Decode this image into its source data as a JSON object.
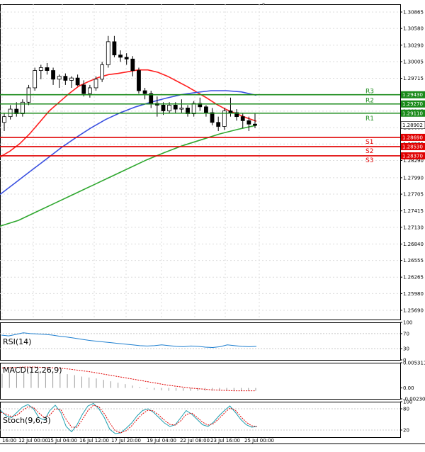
{
  "chart_data": [
    {
      "type": "candlestick",
      "panel": "price",
      "title": "",
      "ylim": [
        1.2553,
        1.31
      ],
      "y_ticks": [
        "1.30865",
        "1.30580",
        "1.30290",
        "1.30005",
        "1.29715",
        "1.29430",
        "1.29145",
        "1.28860",
        "1.28575",
        "1.28290",
        "1.27990",
        "1.27705",
        "1.27415",
        "1.27130",
        "1.26840",
        "1.26555",
        "1.26265",
        "1.25980",
        "1.25690"
      ],
      "x_ticks": [
        "16:00",
        "12 Jul 00:00",
        "15 Jul 04:00",
        "16 Jul 12:00",
        "17 Jul 20:00",
        "19 Jul 04:00",
        "22 Jul 08:00",
        "23 Jul 16:00",
        "25 Jul 00:00"
      ],
      "current_price": "1.28902",
      "levels": [
        {
          "name": "R3",
          "value": 1.2943,
          "label": "1.29430",
          "color": "#1a8a1a"
        },
        {
          "name": "R2",
          "value": 1.2927,
          "label": "1.29270",
          "color": "#1a8a1a"
        },
        {
          "name": "R1",
          "value": 1.2911,
          "label": "1.29110",
          "color": "#1a8a1a"
        },
        {
          "name": "S1",
          "value": 1.2869,
          "label": "1.28690",
          "color": "#e00000"
        },
        {
          "name": "S2",
          "value": 1.2853,
          "label": "1.28530",
          "color": "#e00000"
        },
        {
          "name": "S3",
          "value": 1.2837,
          "label": "1.28370",
          "color": "#e00000"
        }
      ],
      "candles": [
        [
          1.2895,
          1.2912,
          1.288,
          1.2905
        ],
        [
          1.2905,
          1.2925,
          1.29,
          1.2918
        ],
        [
          1.2918,
          1.293,
          1.2905,
          1.291
        ],
        [
          1.291,
          1.2935,
          1.2905,
          1.293
        ],
        [
          1.293,
          1.296,
          1.2925,
          1.2955
        ],
        [
          1.2955,
          1.299,
          1.295,
          1.2985
        ],
        [
          1.2985,
          1.2995,
          1.297,
          1.299
        ],
        [
          1.299,
          1.2998,
          1.2978,
          1.2985
        ],
        [
          1.2985,
          1.299,
          1.296,
          1.297
        ],
        [
          1.297,
          1.2978,
          1.2955,
          1.2975
        ],
        [
          1.2975,
          1.298,
          1.296,
          1.2968
        ],
        [
          1.2968,
          1.2975,
          1.2955,
          1.2972
        ],
        [
          1.2972,
          1.2978,
          1.2958,
          1.296
        ],
        [
          1.296,
          1.2968,
          1.294,
          1.2945
        ],
        [
          1.2945,
          1.296,
          1.2938,
          1.2955
        ],
        [
          1.2955,
          1.2975,
          1.295,
          1.297
        ],
        [
          1.297,
          1.3,
          1.2965,
          1.2995
        ],
        [
          1.2995,
          1.3045,
          1.299,
          1.3035
        ],
        [
          1.3035,
          1.3045,
          1.3008,
          1.3012
        ],
        [
          1.3012,
          1.302,
          1.3,
          1.3008
        ],
        [
          1.3008,
          1.3015,
          1.2995,
          1.3005
        ],
        [
          1.3005,
          1.301,
          1.2975,
          1.2985
        ],
        [
          1.2985,
          1.299,
          1.2945,
          1.295
        ],
        [
          1.295,
          1.2955,
          1.2935,
          1.2945
        ],
        [
          1.2945,
          1.295,
          1.292,
          1.2928
        ],
        [
          1.2928,
          1.294,
          1.2905,
          1.2925
        ],
        [
          1.2925,
          1.293,
          1.2908,
          1.2915
        ],
        [
          1.2915,
          1.293,
          1.291,
          1.2925
        ],
        [
          1.2925,
          1.293,
          1.291,
          1.2918
        ],
        [
          1.2918,
          1.2935,
          1.2912,
          1.292
        ],
        [
          1.292,
          1.2925,
          1.2905,
          1.291
        ],
        [
          1.291,
          1.2932,
          1.2905,
          1.2928
        ],
        [
          1.2928,
          1.2938,
          1.2915,
          1.2922
        ],
        [
          1.2922,
          1.2925,
          1.2905,
          1.2912
        ],
        [
          1.2912,
          1.292,
          1.289,
          1.2895
        ],
        [
          1.2895,
          1.2905,
          1.288,
          1.2888
        ],
        [
          1.2888,
          1.292,
          1.2882,
          1.2915
        ],
        [
          1.2915,
          1.2938,
          1.2905,
          1.2912
        ],
        [
          1.2912,
          1.2918,
          1.2898,
          1.2905
        ],
        [
          1.2905,
          1.291,
          1.2885,
          1.2898
        ],
        [
          1.2898,
          1.2905,
          1.288,
          1.2892
        ],
        [
          1.2892,
          1.291,
          1.2885,
          1.289
        ]
      ],
      "series": [
        {
          "color": "#ff2020",
          "values": [
            1.2835,
            1.2845,
            1.2858,
            1.2875,
            1.2895,
            1.2915,
            1.293,
            1.2945,
            1.2958,
            1.2966,
            1.2973,
            1.2978,
            1.298,
            1.2983,
            1.2986,
            1.2986,
            1.2982,
            1.2975,
            1.2966,
            1.2957,
            1.2947,
            1.2937,
            1.2926,
            1.2917,
            1.291,
            1.2903,
            1.2897
          ]
        },
        {
          "color": "#3a50e0",
          "values": [
            1.277,
            1.279,
            1.281,
            1.283,
            1.285,
            1.2868,
            1.2885,
            1.29,
            1.2912,
            1.2922,
            1.293,
            1.2937,
            1.2943,
            1.2947,
            1.295,
            1.295,
            1.2948,
            1.2942
          ]
        },
        {
          "color": "#30a830",
          "values": [
            1.2715,
            1.2725,
            1.274,
            1.2755,
            1.277,
            1.2785,
            1.28,
            1.2815,
            1.283,
            1.2843,
            1.2855,
            1.2865,
            1.2875,
            1.2883,
            1.289
          ]
        }
      ]
    },
    {
      "type": "line",
      "panel": "RSI",
      "label": "RSI(14)",
      "ylim": [
        0,
        100
      ],
      "y_ticks": [
        "100",
        "70",
        "30",
        "0"
      ],
      "series": [
        {
          "color": "#1e7fd0",
          "values": [
            66,
            64,
            68,
            72,
            70,
            69,
            68,
            66,
            63,
            61,
            58,
            55,
            52,
            50,
            48,
            46,
            44,
            42,
            40,
            38,
            37,
            38,
            40,
            38,
            36,
            35,
            37,
            36,
            34,
            33,
            35,
            40,
            38,
            36,
            35,
            36
          ]
        }
      ]
    },
    {
      "type": "bar",
      "panel": "MACD",
      "label": "MACD(12,26,9)",
      "ylim": [
        -0.002303,
        0.005311
      ],
      "y_ticks": [
        "0.005311",
        "0.00",
        "-0.002303"
      ],
      "histogram": [
        0.003,
        0.0032,
        0.0034,
        0.0035,
        0.0035,
        0.0035,
        0.0034,
        0.0033,
        0.0031,
        0.0029,
        0.0027,
        0.0024,
        0.0022,
        0.002,
        0.0017,
        0.0014,
        0.0011,
        0.0008,
        0.0005,
        0.0002,
        -0.0002,
        -0.0004,
        -0.0005,
        -0.0006,
        -0.0006,
        -0.0006,
        -0.0006,
        -0.0006,
        -0.0006,
        -0.0006,
        -0.0006,
        -0.0006,
        -0.0006,
        -0.0006,
        -0.0006,
        -0.0006
      ],
      "series": [
        {
          "color": "#e00000",
          "values": [
            0.0042,
            0.0043,
            0.0044,
            0.0044,
            0.0043,
            0.0042,
            0.004,
            0.0037,
            0.0034,
            0.003,
            0.0026,
            0.0022,
            0.0018,
            0.0014,
            0.001,
            0.0006,
            0.0003,
            0.0,
            -0.0002,
            -0.0004,
            -0.0005,
            -0.0006,
            -0.0006,
            -0.0006
          ]
        }
      ]
    },
    {
      "type": "line",
      "panel": "Stochastic",
      "label": "Stoch(9,6,3)",
      "ylim": [
        0,
        100
      ],
      "y_ticks": [
        "100",
        "80",
        "20"
      ],
      "series": [
        {
          "color": "#1e9fb0",
          "values": [
            75,
            60,
            55,
            70,
            85,
            92,
            80,
            55,
            48,
            75,
            90,
            70,
            30,
            15,
            35,
            65,
            88,
            95,
            80,
            55,
            22,
            10,
            12,
            25,
            40,
            60,
            75,
            80,
            70,
            55,
            40,
            30,
            35,
            55,
            75,
            65,
            50,
            35,
            30,
            42,
            60,
            75,
            88,
            70,
            50,
            35,
            28,
            30
          ]
        },
        {
          "color": "#e00000",
          "values": [
            70,
            65,
            58,
            62,
            75,
            86,
            84,
            68,
            55,
            62,
            80,
            78,
            50,
            28,
            28,
            50,
            75,
            90,
            86,
            66,
            40,
            18,
            12,
            18,
            32,
            50,
            66,
            76,
            74,
            62,
            48,
            36,
            34,
            46,
            64,
            68,
            56,
            42,
            34,
            38,
            52,
            68,
            82,
            76,
            58,
            42,
            32,
            30
          ]
        }
      ]
    }
  ]
}
